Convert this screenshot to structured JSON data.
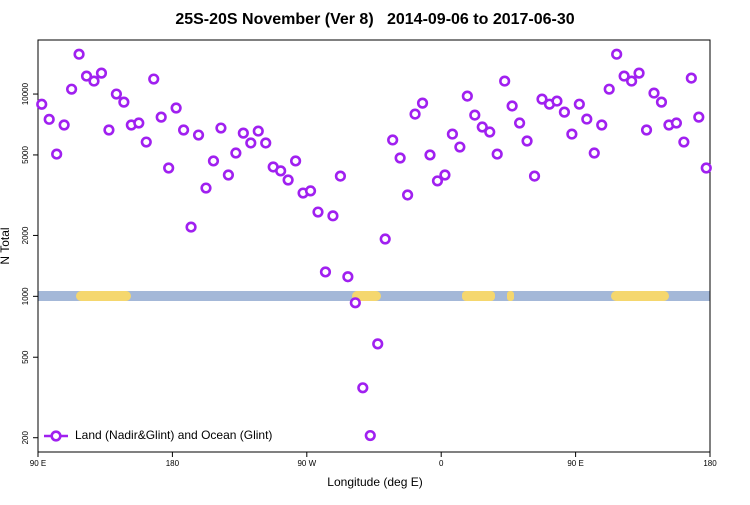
{
  "chart_data": {
    "type": "scatter",
    "title": "25S-20S November (Ver 8)   2014-09-06 to 2017-06-30",
    "x_label": "Longitude (deg E)",
    "y_label": "N Total",
    "y_log": true,
    "legend": "bottom-left",
    "xlim": [
      90,
      540
    ],
    "xticks": [
      {
        "value": 90,
        "label": "90 E"
      },
      180,
      {
        "value": 270,
        "label": "90 W"
      },
      {
        "value": 360,
        "label": "0"
      },
      {
        "value": 450,
        "label": "90 E"
      },
      {
        "value": 540,
        "label": "180"
      }
    ],
    "ylim": [
      170,
      18500
    ],
    "yticks": [
      200,
      500,
      1000,
      2000,
      5000,
      10000
    ],
    "x": [
      92.5,
      97.5,
      102.5,
      107.5,
      112.5,
      117.5,
      122.5,
      127.5,
      132.5,
      137.5,
      142.5,
      147.5,
      152.5,
      157.5,
      162.5,
      167.5,
      172.5,
      177.5,
      182.5,
      187.5,
      192.5,
      197.5,
      202.5,
      207.5,
      212.5,
      217.5,
      222.5,
      227.5,
      232.5,
      237.5,
      242.5,
      247.5,
      252.5,
      257.5,
      262.5,
      267.5,
      272.5,
      277.5,
      282.5,
      287.5,
      292.5,
      297.5,
      302.5,
      307.5,
      312.5,
      317.5,
      322.5,
      327.5,
      332.5,
      337.5,
      342.5,
      347.5,
      352.5,
      357.5,
      362.5,
      367.5,
      372.5,
      377.5,
      382.5,
      387.5,
      392.5,
      397.5,
      402.5,
      407.5,
      412.5,
      417.5,
      422.5,
      427.5,
      432.5,
      437.5,
      442.5,
      447.5,
      452.5,
      457.5,
      462.5,
      467.5,
      472.5,
      477.5,
      482.5,
      487.5,
      492.5,
      497.5,
      502.5,
      507.5,
      512.5,
      517.5,
      522.5,
      527.5,
      532.5,
      537.5
    ],
    "series": [
      {
        "name": "Land (Nadir&Glint) and Ocean (Glint)",
        "color": "#a020f0",
        "values": [
          8900,
          7500,
          5050,
          7030,
          10570,
          15740,
          12270,
          11590,
          12690,
          6640,
          10000,
          9120,
          7030,
          7190,
          5790,
          11860,
          7690,
          4310,
          8530,
          6640,
          2200,
          6270,
          3430,
          4670,
          6790,
          3980,
          5110,
          6410,
          5730,
          6560,
          5730,
          4360,
          4170,
          3760,
          4670,
          3240,
          3320,
          2610,
          1320,
          2500,
          3930,
          1250,
          929,
          353,
          205,
          582,
          1920,
          5930,
          4830,
          3170,
          7960,
          9020,
          5000,
          3720,
          3980,
          6340,
          5470,
          9770,
          7870,
          6870,
          6490,
          5050,
          11590,
          8730,
          7190,
          5860,
          3930,
          9440,
          8910,
          9230,
          8140,
          6340,
          8910,
          7520,
          5110,
          7030,
          10570,
          15740,
          12270,
          11590,
          12690,
          6640,
          10110,
          9120,
          7030,
          7190,
          5790,
          11990,
          7690,
          4310
        ]
      }
    ]
  }
}
